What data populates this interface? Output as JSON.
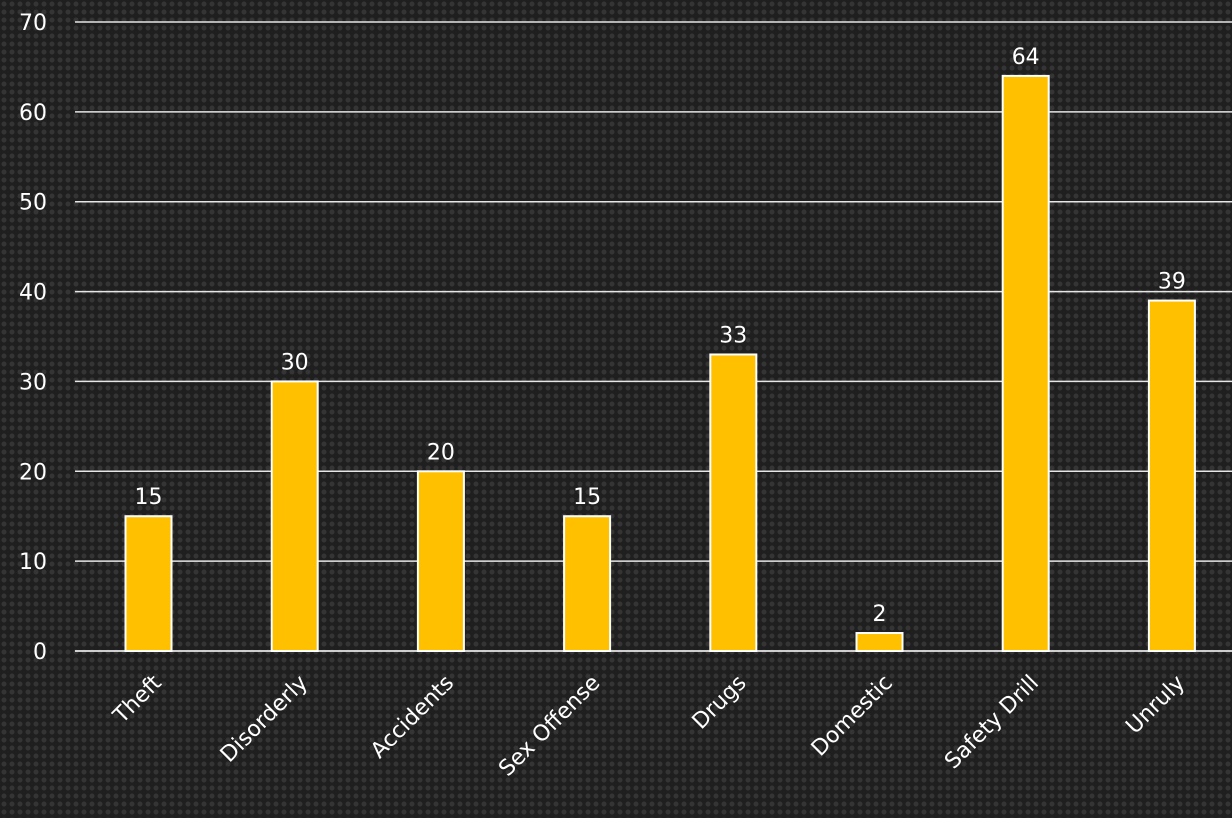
{
  "chart_data": {
    "type": "bar",
    "categories": [
      "Theft",
      "Disorderly",
      "Accidents",
      "Sex Offense",
      "Drugs",
      "Domestic",
      "Safety Drill",
      "Unruly"
    ],
    "values": [
      15,
      30,
      20,
      15,
      33,
      2,
      64,
      39
    ],
    "data_labels": [
      "15",
      "30",
      "20",
      "15",
      "33",
      "2",
      "64",
      "39"
    ],
    "yticks": [
      "0",
      "10",
      "20",
      "30",
      "40",
      "50",
      "60",
      "70"
    ],
    "ylim": [
      0,
      70
    ],
    "grid": true,
    "legend": "none",
    "title": "",
    "xlabel": "",
    "ylabel": ""
  },
  "colors": {
    "bar": "#FFC000",
    "gridline": "#e6e6e6",
    "text": "#ffffff",
    "background": "#1f1f1f"
  }
}
